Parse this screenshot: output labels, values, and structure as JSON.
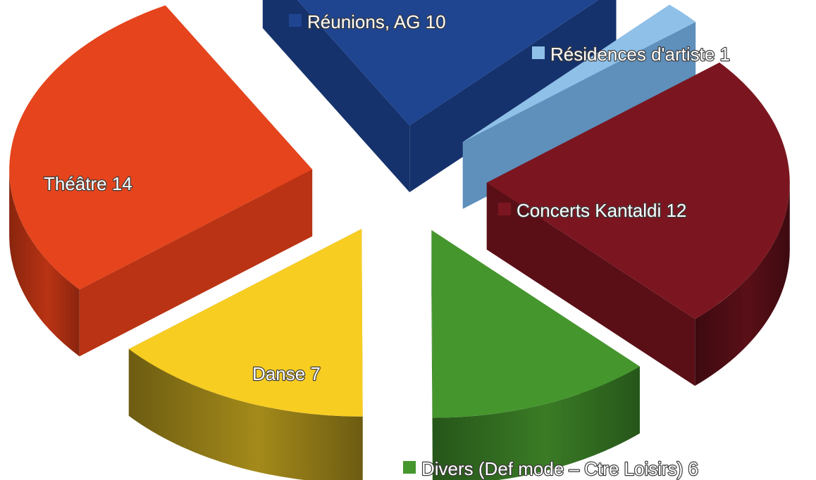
{
  "chart_data": {
    "type": "pie",
    "title": "",
    "style": "3d-exploded",
    "slices": [
      {
        "label": "Réunions, AG",
        "value": 10,
        "text": "Réunions, AG 10",
        "color": "#1f4591",
        "side": "#16326c",
        "dark": "#0f2350"
      },
      {
        "label": "Résidences d'artiste",
        "value": 1,
        "text": "Résidences d'artiste 1",
        "color": "#8fc0e8",
        "side": "#5f8fbb",
        "dark": "#456d94"
      },
      {
        "label": "Concerts Kantaldi",
        "value": 12,
        "text": "Concerts Kantaldi 12",
        "color": "#7b1620",
        "side": "#5a0f17",
        "dark": "#3d0a10"
      },
      {
        "label": "Divers (Def mode – Ctre Loisirs)",
        "value": 6,
        "text": "Divers (Def mode – Ctre Loisirs) 6",
        "color": "#46962e",
        "side": "#3a7b25",
        "dark": "#26561a"
      },
      {
        "label": "Danse",
        "value": 7,
        "text": "Danse 7",
        "color": "#f7cd22",
        "side": "#a48a1a",
        "dark": "#6d5c12"
      },
      {
        "label": "Théâtre",
        "value": 14,
        "text": "Théâtre 14",
        "color": "#e5441c",
        "side": "#b93314",
        "dark": "#8a250e"
      }
    ]
  }
}
